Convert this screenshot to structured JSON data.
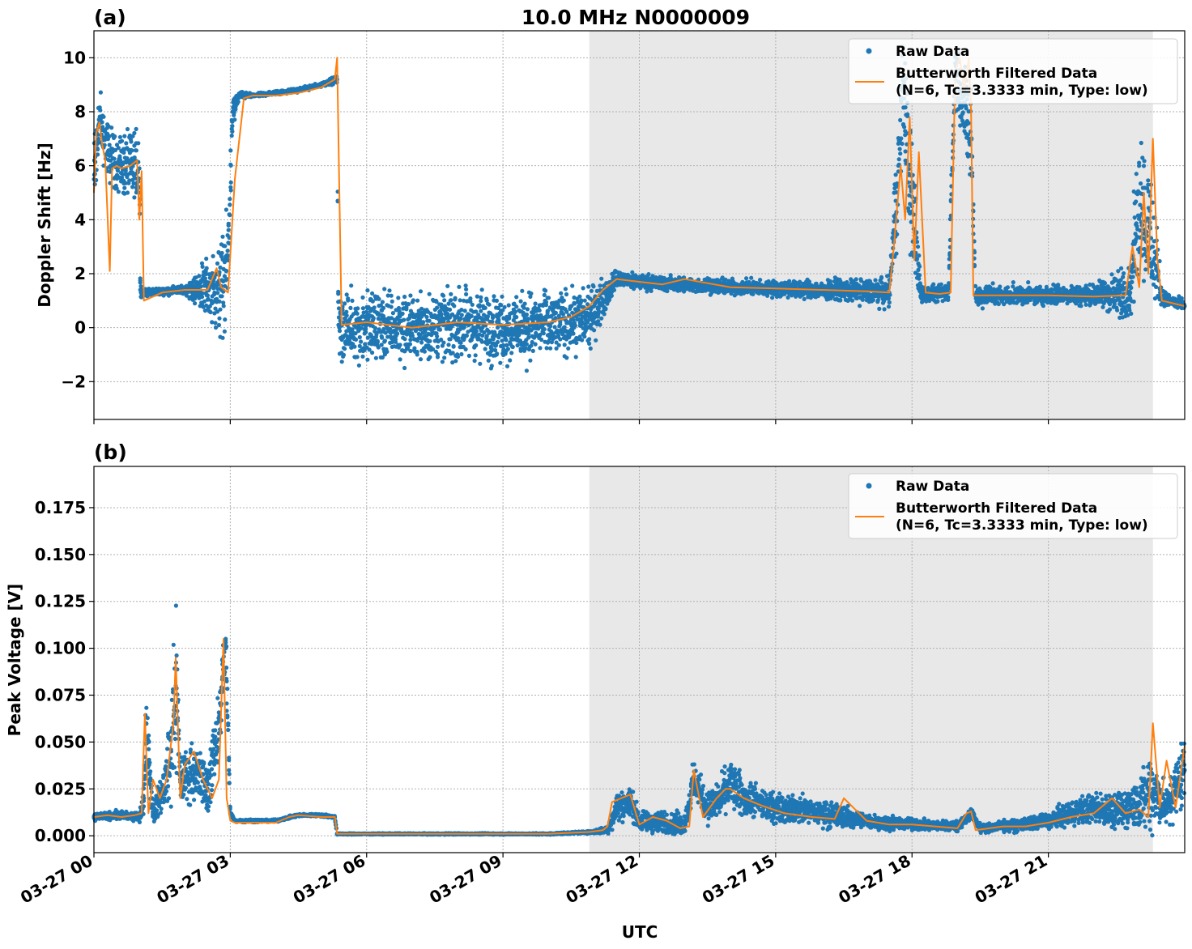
{
  "figure": {
    "title": "10.0 MHz N0000009",
    "xlabel": "UTC"
  },
  "chart_data": [
    {
      "type": "scatter",
      "panel_label": "(a)",
      "title": "10.0 MHz N0000009",
      "xlabel": "",
      "ylabel": "Doppler Shift [Hz]",
      "x_unit": "hours UTC",
      "xlim": [
        0,
        24
      ],
      "ylim": [
        -3.4,
        11
      ],
      "yticks": [
        -2,
        0,
        2,
        4,
        6,
        8,
        10
      ],
      "ytick_labels": [
        "−2",
        "0",
        "2",
        "4",
        "6",
        "8",
        "10"
      ],
      "xticks": [
        0,
        3,
        6,
        9,
        12,
        15,
        18,
        21
      ],
      "shaded_x": [
        10.9,
        23.3
      ],
      "shade_color": "#e8e8e8",
      "grid": true,
      "legend_placement": "top-right",
      "series": [
        {
          "name": "Raw Data",
          "marker": "dot",
          "color": "#1f77b4",
          "x": [
            0.0,
            0.1,
            0.15,
            0.3,
            0.5,
            0.8,
            1.0,
            1.02,
            1.1,
            1.5,
            2.0,
            2.5,
            2.8,
            2.95,
            3.05,
            3.2,
            3.5,
            4.0,
            4.5,
            5.0,
            5.35,
            5.38,
            5.4,
            6.0,
            7.0,
            8.0,
            9.0,
            10.0,
            10.9,
            11.3,
            11.5,
            12.0,
            13.0,
            14.0,
            15.0,
            16.0,
            17.0,
            17.5,
            17.7,
            17.8,
            18.0,
            18.2,
            18.5,
            18.8,
            18.95,
            19.1,
            19.3,
            19.4,
            20.0,
            21.0,
            22.0,
            22.8,
            23.0,
            23.3,
            23.5,
            24.0
          ],
          "y": [
            5.5,
            7.5,
            7.6,
            6.5,
            6.1,
            6.0,
            5.9,
            1.4,
            1.3,
            1.35,
            1.4,
            1.5,
            1.4,
            2.5,
            8.0,
            8.6,
            8.6,
            8.7,
            8.8,
            9.0,
            9.2,
            0.1,
            0.0,
            0.1,
            0.0,
            0.1,
            0.0,
            0.1,
            0.3,
            1.3,
            1.8,
            1.7,
            1.6,
            1.5,
            1.45,
            1.4,
            1.35,
            1.3,
            6.0,
            9.0,
            4.5,
            1.3,
            1.25,
            1.3,
            9.5,
            8.5,
            7.0,
            1.2,
            1.2,
            1.2,
            1.2,
            1.3,
            5.0,
            3.0,
            1.1,
            0.8
          ],
          "spread_hz": [
            2.0,
            1.5,
            1.5,
            1.5,
            1.5,
            1.8,
            2.5,
            0.3,
            0.2,
            0.2,
            0.2,
            1.5,
            2.5,
            2.5,
            1.0,
            0.2,
            0.1,
            0.1,
            0.1,
            0.1,
            0.2,
            1.4,
            1.6,
            1.8,
            1.8,
            1.8,
            1.8,
            1.8,
            1.5,
            0.8,
            0.4,
            0.4,
            0.4,
            0.4,
            0.4,
            0.5,
            0.6,
            0.7,
            3.5,
            2.5,
            3.5,
            0.5,
            0.4,
            0.5,
            1.5,
            2.0,
            3.0,
            0.6,
            0.5,
            0.5,
            0.5,
            1.5,
            4.0,
            3.5,
            0.4,
            0.3
          ]
        },
        {
          "name": "Butterworth Filtered Data\n(N=6, Tc=3.3333 min, Type: low)",
          "legend_lines": [
            "Butterworth Filtered Data",
            "(N=6, Tc=3.3333 min, Type: low)"
          ],
          "marker": "line",
          "color": "#ff7f0e",
          "x": [
            0.0,
            0.05,
            0.12,
            0.18,
            0.25,
            0.35,
            0.4,
            0.5,
            0.6,
            0.8,
            0.95,
            1.0,
            1.05,
            1.1,
            1.5,
            2.0,
            2.5,
            2.7,
            2.8,
            2.95,
            3.1,
            3.3,
            3.5,
            4.0,
            4.5,
            5.0,
            5.3,
            5.35,
            5.4,
            5.45,
            6.0,
            7.0,
            8.0,
            9.0,
            10.0,
            10.5,
            10.9,
            11.2,
            11.5,
            12.0,
            12.5,
            13.0,
            14.0,
            15.0,
            16.0,
            17.0,
            17.5,
            17.6,
            17.75,
            17.85,
            17.95,
            18.05,
            18.15,
            18.3,
            18.6,
            18.85,
            18.95,
            19.05,
            19.15,
            19.25,
            19.3,
            19.35,
            20.0,
            21.0,
            22.0,
            22.7,
            22.85,
            23.0,
            23.1,
            23.2,
            23.3,
            23.4,
            23.5,
            24.0
          ],
          "y": [
            5.0,
            7.2,
            7.6,
            6.8,
            6.2,
            2.1,
            5.9,
            6.0,
            5.9,
            6.0,
            6.2,
            4.0,
            5.8,
            1.0,
            1.3,
            1.4,
            1.4,
            2.2,
            1.5,
            1.3,
            5.5,
            8.5,
            8.6,
            8.6,
            8.7,
            8.9,
            9.2,
            10.0,
            5.0,
            0.1,
            0.2,
            0.0,
            0.2,
            0.1,
            0.2,
            0.4,
            0.8,
            1.4,
            1.8,
            1.7,
            1.6,
            1.8,
            1.5,
            1.45,
            1.4,
            1.35,
            1.3,
            3.0,
            6.0,
            4.0,
            7.8,
            2.5,
            6.5,
            1.3,
            1.25,
            1.3,
            9.5,
            10.0,
            8.8,
            10.0,
            8.0,
            1.2,
            1.2,
            1.2,
            1.15,
            1.2,
            3.0,
            1.5,
            5.0,
            2.0,
            7.0,
            2.5,
            1.0,
            0.8
          ]
        }
      ]
    },
    {
      "type": "scatter",
      "panel_label": "(b)",
      "title": "",
      "xlabel": "UTC",
      "ylabel": "Peak Voltage [V]",
      "x_unit": "hours UTC",
      "xlim": [
        0,
        24
      ],
      "ylim": [
        -0.009,
        0.197
      ],
      "yticks": [
        0.0,
        0.025,
        0.05,
        0.075,
        0.1,
        0.125,
        0.15,
        0.175
      ],
      "ytick_labels": [
        "0.000",
        "0.025",
        "0.050",
        "0.075",
        "0.100",
        "0.125",
        "0.150",
        "0.175"
      ],
      "xticks": [
        0,
        3,
        6,
        9,
        12,
        15,
        18,
        21
      ],
      "xtick_labels": [
        "03-27 00",
        "03-27 03",
        "03-27 06",
        "03-27 09",
        "03-27 12",
        "03-27 15",
        "03-27 18",
        "03-27 21"
      ],
      "shaded_x": [
        10.9,
        23.3
      ],
      "shade_color": "#e8e8e8",
      "grid": true,
      "legend_placement": "top-right",
      "series": [
        {
          "name": "Raw Data",
          "marker": "dot",
          "color": "#1f77b4",
          "x": [
            0.0,
            0.5,
            1.0,
            1.1,
            1.15,
            1.3,
            1.5,
            1.7,
            1.8,
            1.9,
            2.2,
            2.5,
            2.7,
            2.9,
            3.0,
            3.1,
            3.5,
            4.0,
            4.5,
            5.0,
            5.3,
            5.35,
            6.0,
            8.0,
            10.0,
            11.0,
            11.3,
            11.5,
            11.8,
            12.0,
            12.5,
            13.0,
            13.2,
            13.5,
            13.8,
            14.0,
            14.3,
            14.8,
            15.5,
            16.0,
            16.5,
            17.0,
            18.0,
            19.0,
            19.3,
            19.5,
            20.0,
            20.5,
            21.0,
            21.5,
            22.0,
            22.5,
            23.0,
            23.3,
            23.6,
            24.0
          ],
          "y": [
            0.01,
            0.011,
            0.01,
            0.02,
            0.06,
            0.012,
            0.022,
            0.045,
            0.08,
            0.03,
            0.035,
            0.025,
            0.05,
            0.1,
            0.012,
            0.008,
            0.008,
            0.008,
            0.011,
            0.011,
            0.01,
            0.001,
            0.001,
            0.001,
            0.001,
            0.002,
            0.003,
            0.015,
            0.018,
            0.008,
            0.007,
            0.006,
            0.03,
            0.015,
            0.02,
            0.028,
            0.02,
            0.016,
            0.014,
            0.012,
            0.01,
            0.008,
            0.006,
            0.005,
            0.012,
            0.004,
            0.005,
            0.006,
            0.008,
            0.012,
            0.015,
            0.012,
            0.018,
            0.025,
            0.015,
            0.035
          ],
          "spread_v": [
            0.003,
            0.003,
            0.003,
            0.015,
            0.03,
            0.01,
            0.015,
            0.04,
            0.06,
            0.02,
            0.02,
            0.02,
            0.03,
            0.03,
            0.003,
            0.001,
            0.001,
            0.001,
            0.001,
            0.001,
            0.001,
            0.0005,
            0.0005,
            0.0005,
            0.0005,
            0.001,
            0.003,
            0.012,
            0.012,
            0.008,
            0.008,
            0.008,
            0.015,
            0.012,
            0.015,
            0.02,
            0.015,
            0.012,
            0.01,
            0.01,
            0.008,
            0.006,
            0.004,
            0.004,
            0.004,
            0.003,
            0.004,
            0.005,
            0.007,
            0.01,
            0.012,
            0.012,
            0.02,
            0.03,
            0.015,
            0.03
          ]
        },
        {
          "name": "Butterworth Filtered Data\n(N=6, Tc=3.3333 min, Type: low)",
          "legend_lines": [
            "Butterworth Filtered Data",
            "(N=6, Tc=3.3333 min, Type: low)"
          ],
          "marker": "line",
          "color": "#ff7f0e",
          "x": [
            0.0,
            0.3,
            0.6,
            0.9,
            1.05,
            1.12,
            1.2,
            1.3,
            1.45,
            1.6,
            1.75,
            1.8,
            1.9,
            2.0,
            2.2,
            2.4,
            2.6,
            2.75,
            2.85,
            2.92,
            3.0,
            3.1,
            3.5,
            4.0,
            4.3,
            4.5,
            5.0,
            5.3,
            5.35,
            6.0,
            8.0,
            10.0,
            10.9,
            11.2,
            11.3,
            11.4,
            11.6,
            11.8,
            12.0,
            12.3,
            12.6,
            12.9,
            13.1,
            13.2,
            13.4,
            13.7,
            13.9,
            14.0,
            14.3,
            14.7,
            15.2,
            15.8,
            16.3,
            16.5,
            17.0,
            17.5,
            18.0,
            18.5,
            19.0,
            19.2,
            19.3,
            19.4,
            20.0,
            20.5,
            21.0,
            21.5,
            22.0,
            22.4,
            22.7,
            23.0,
            23.2,
            23.3,
            23.45,
            23.6,
            23.8,
            24.0
          ],
          "y": [
            0.01,
            0.011,
            0.01,
            0.011,
            0.012,
            0.065,
            0.012,
            0.03,
            0.02,
            0.03,
            0.06,
            0.095,
            0.02,
            0.038,
            0.045,
            0.03,
            0.02,
            0.03,
            0.105,
            0.02,
            0.008,
            0.007,
            0.007,
            0.007,
            0.01,
            0.011,
            0.01,
            0.01,
            0.001,
            0.001,
            0.001,
            0.001,
            0.002,
            0.003,
            0.005,
            0.018,
            0.02,
            0.022,
            0.006,
            0.01,
            0.008,
            0.004,
            0.005,
            0.035,
            0.01,
            0.02,
            0.025,
            0.025,
            0.02,
            0.016,
            0.012,
            0.01,
            0.009,
            0.02,
            0.008,
            0.006,
            0.006,
            0.005,
            0.004,
            0.012,
            0.013,
            0.003,
            0.005,
            0.005,
            0.007,
            0.01,
            0.012,
            0.02,
            0.012,
            0.014,
            0.01,
            0.06,
            0.015,
            0.04,
            0.015,
            0.048
          ]
        }
      ]
    }
  ]
}
